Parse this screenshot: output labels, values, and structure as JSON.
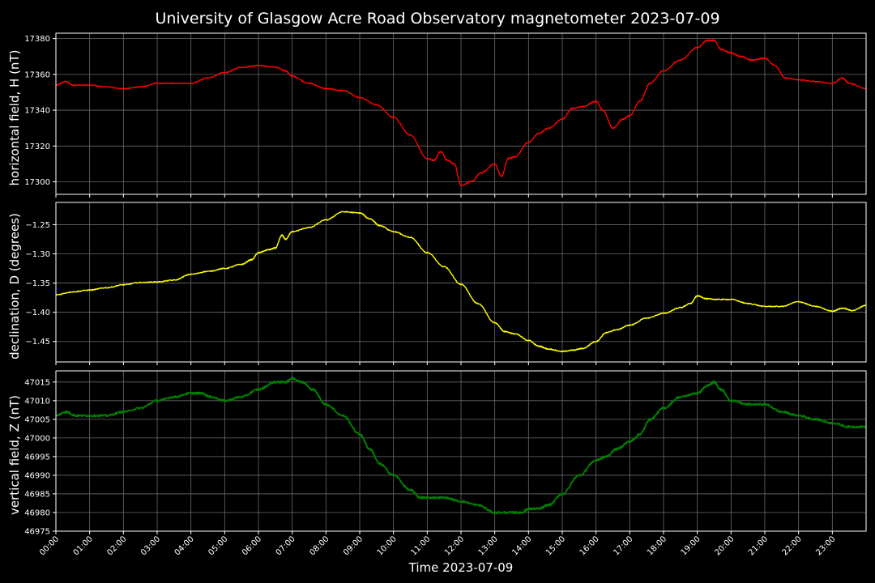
{
  "chart_data": {
    "title": "University of Glasgow Acre Road Observatory magnetometer 2023-07-09",
    "xlabel": "Time 2023-07-09",
    "x_ticks": [
      "00:00",
      "01:00",
      "02:00",
      "03:00",
      "04:00",
      "05:00",
      "06:00",
      "07:00",
      "08:00",
      "09:00",
      "10:00",
      "11:00",
      "12:00",
      "13:00",
      "14:00",
      "15:00",
      "16:00",
      "17:00",
      "18:00",
      "19:00",
      "20:00",
      "21:00",
      "22:00",
      "23:00"
    ],
    "x_range_hours": [
      0,
      24
    ],
    "grid": true,
    "panels": [
      {
        "type": "line",
        "name": "H",
        "ylabel": "horizontal field, H (nT)",
        "color": "#ff0000",
        "ylim": [
          17293,
          17383
        ],
        "yticks": [
          17300,
          17320,
          17340,
          17360,
          17380
        ],
        "ytick_labels": [
          "17300",
          "17320",
          "17340",
          "17360",
          "17380"
        ],
        "x": [
          0,
          0.3,
          0.5,
          1,
          1.5,
          2,
          2.5,
          3,
          3.5,
          4,
          4.5,
          5,
          5.5,
          6,
          6.5,
          6.8,
          7,
          7.5,
          8,
          8.5,
          9,
          9.5,
          10,
          10.5,
          11,
          11.2,
          11.4,
          11.6,
          11.8,
          12,
          12.3,
          12.6,
          13,
          13.2,
          13.4,
          13.6,
          14,
          14.3,
          14.6,
          15,
          15.3,
          15.6,
          16,
          16.2,
          16.5,
          16.8,
          17,
          17.3,
          17.6,
          18,
          18.5,
          19,
          19.3,
          19.5,
          19.7,
          20,
          20.3,
          20.6,
          21,
          21.3,
          21.6,
          22,
          22.5,
          23,
          23.3,
          23.5,
          24
        ],
        "y": [
          17354,
          17356,
          17354,
          17354,
          17353,
          17352,
          17353,
          17355,
          17355,
          17355,
          17358,
          17361,
          17364,
          17365,
          17364,
          17362,
          17359,
          17355,
          17352,
          17351,
          17347,
          17343,
          17336,
          17326,
          17313,
          17312,
          17317,
          17312,
          17310,
          17298,
          17300,
          17305,
          17310,
          17303,
          17313,
          17314,
          17322,
          17327,
          17330,
          17335,
          17341,
          17342,
          17345,
          17340,
          17330,
          17335,
          17337,
          17345,
          17355,
          17362,
          17368,
          17375,
          17379,
          17379,
          17374,
          17372,
          17370,
          17368,
          17369,
          17365,
          17358,
          17357,
          17356,
          17355,
          17358,
          17355,
          17352
        ]
      },
      {
        "type": "line",
        "name": "D",
        "ylabel": "declination, D (degrees)",
        "color": "#ffff00",
        "ylim": [
          -1.485,
          -1.212
        ],
        "yticks": [
          -1.45,
          -1.4,
          -1.35,
          -1.3,
          -1.25
        ],
        "ytick_labels": [
          "−1.45",
          "−1.40",
          "−1.35",
          "−1.30",
          "−1.25"
        ],
        "x": [
          0,
          0.5,
          1,
          1.5,
          2,
          2.5,
          3,
          3.5,
          4,
          4.5,
          5,
          5.5,
          5.8,
          6,
          6.3,
          6.5,
          6.7,
          6.8,
          7,
          7.5,
          8,
          8.5,
          9,
          9.3,
          9.6,
          10,
          10.5,
          11,
          11.5,
          12,
          12.5,
          13,
          13.3,
          13.6,
          14,
          14.3,
          14.6,
          15,
          15.3,
          15.6,
          16,
          16.3,
          16.6,
          17,
          17.5,
          18,
          18.5,
          18.8,
          19,
          19.3,
          19.6,
          20,
          20.5,
          21,
          21.5,
          22,
          22.5,
          23,
          23.3,
          23.6,
          24
        ],
        "y": [
          -1.37,
          -1.365,
          -1.362,
          -1.358,
          -1.353,
          -1.349,
          -1.348,
          -1.345,
          -1.335,
          -1.33,
          -1.325,
          -1.318,
          -1.31,
          -1.298,
          -1.293,
          -1.29,
          -1.268,
          -1.275,
          -1.262,
          -1.255,
          -1.242,
          -1.228,
          -1.23,
          -1.24,
          -1.252,
          -1.262,
          -1.272,
          -1.298,
          -1.322,
          -1.352,
          -1.385,
          -1.418,
          -1.433,
          -1.437,
          -1.448,
          -1.458,
          -1.463,
          -1.467,
          -1.465,
          -1.462,
          -1.45,
          -1.435,
          -1.43,
          -1.422,
          -1.41,
          -1.402,
          -1.392,
          -1.385,
          -1.372,
          -1.377,
          -1.378,
          -1.378,
          -1.385,
          -1.39,
          -1.39,
          -1.382,
          -1.39,
          -1.398,
          -1.393,
          -1.397,
          -1.388
        ]
      },
      {
        "type": "line",
        "name": "Z",
        "ylabel": "vertical field, Z (nT)",
        "color": "#008000",
        "ylim": [
          46975,
          47018
        ],
        "yticks": [
          46975,
          46980,
          46985,
          46990,
          46995,
          47000,
          47005,
          47010,
          47015
        ],
        "ytick_labels": [
          "46975",
          "46980",
          "46985",
          "46990",
          "46995",
          "47000",
          "47005",
          "47010",
          "47015"
        ],
        "x": [
          0,
          0.3,
          0.6,
          1,
          1.5,
          2,
          2.5,
          3,
          3.5,
          4,
          4.3,
          4.6,
          5,
          5.5,
          6,
          6.5,
          6.8,
          7,
          7.3,
          7.6,
          8,
          8.5,
          9,
          9.3,
          9.6,
          10,
          10.5,
          10.8,
          11,
          11.5,
          12,
          12.5,
          13,
          13.5,
          13.8,
          14,
          14.3,
          14.6,
          15,
          15.5,
          16,
          16.3,
          16.6,
          17,
          17.3,
          17.6,
          18,
          18.5,
          19,
          19.3,
          19.5,
          19.7,
          20,
          20.5,
          21,
          21.5,
          22,
          22.5,
          23,
          23.5,
          24
        ],
        "y": [
          47006,
          47007,
          47006,
          47006,
          47006,
          47007,
          47008,
          47010,
          47011,
          47012,
          47012,
          47011,
          47010,
          47011,
          47013,
          47015,
          47015,
          47016,
          47015,
          47013,
          47009,
          47006,
          47001,
          46997,
          46993,
          46990,
          46986,
          46984,
          46984,
          46984,
          46983,
          46982,
          46980,
          46980,
          46980,
          46981,
          46981,
          46982,
          46985,
          46990,
          46994,
          46995,
          46997,
          46999,
          47001,
          47005,
          47008,
          47011,
          47012,
          47014,
          47015,
          47013,
          47010,
          47009,
          47009,
          47007,
          47006,
          47005,
          47004,
          47003,
          47003
        ]
      }
    ]
  }
}
